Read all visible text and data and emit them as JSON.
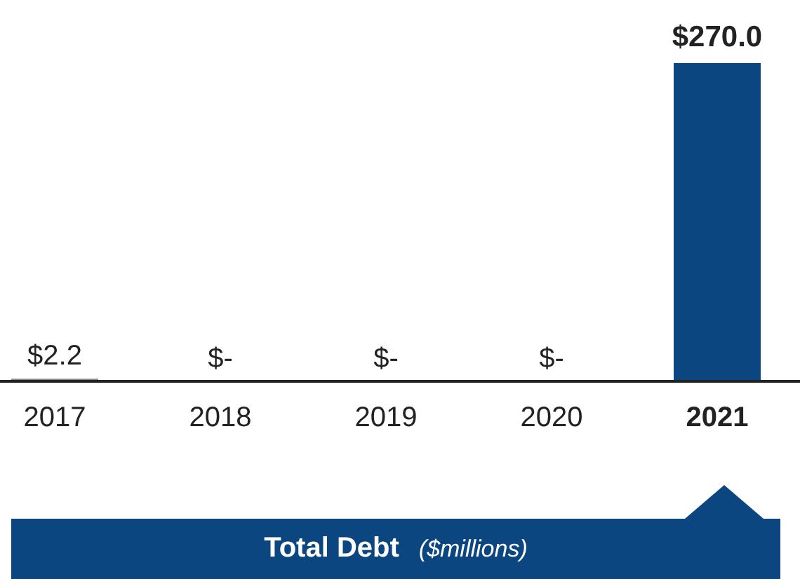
{
  "chart_data": {
    "type": "bar",
    "title": "Total Debt",
    "subtitle": "($millions)",
    "categories": [
      "2017",
      "2018",
      "2019",
      "2020",
      "2021"
    ],
    "values": [
      2.2,
      0,
      0,
      0,
      270.0
    ],
    "value_labels": [
      "$2.2",
      "$-",
      "$-",
      "$-",
      "$270.0"
    ],
    "colors": [
      "#8a8a8c",
      "#8a8a8c",
      "#8a8a8c",
      "#8a8a8c",
      "#0b4680"
    ],
    "grid": false,
    "legend": false
  }
}
